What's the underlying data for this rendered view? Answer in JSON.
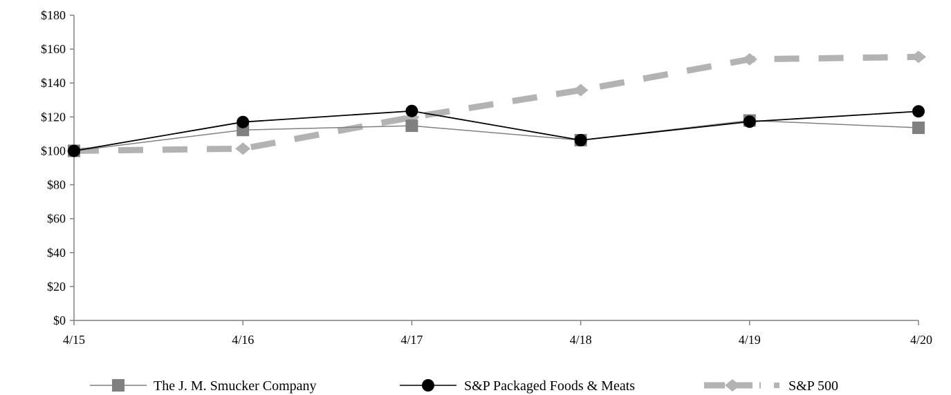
{
  "chart_data": {
    "type": "line",
    "categories": [
      "4/15",
      "4/16",
      "4/17",
      "4/18",
      "4/19",
      "4/20"
    ],
    "ylim": [
      0,
      180
    ],
    "yticks": [
      0,
      20,
      40,
      60,
      80,
      100,
      120,
      140,
      160,
      180
    ],
    "ytick_labels": [
      "$0",
      "$20",
      "$40",
      "$60",
      "$80",
      "$100",
      "$120",
      "$140",
      "$160",
      "$180"
    ],
    "grid": false,
    "legend": "bottom",
    "series": [
      {
        "name": "The J. M. Smucker Company",
        "values": [
          100,
          112.3,
          114.8,
          106.3,
          117.9,
          113.6
        ],
        "color": "#808080",
        "marker": "square",
        "style": "solid"
      },
      {
        "name": "S&P Packaged Foods & Meats",
        "values": [
          100,
          117,
          123.5,
          106.3,
          117.2,
          123.3
        ],
        "color": "#000000",
        "marker": "circle",
        "style": "solid"
      },
      {
        "name": "S&P 500",
        "values": [
          100,
          101.3,
          119.8,
          135.8,
          154,
          155.4
        ],
        "color": "#b3b3b3",
        "marker": "diamond",
        "style": "dashed"
      }
    ]
  }
}
